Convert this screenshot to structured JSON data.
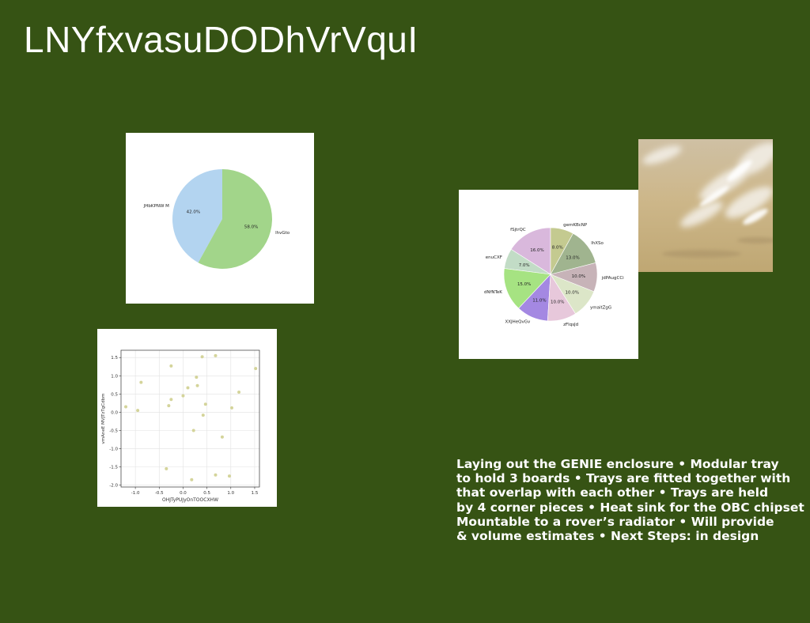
{
  "slide": {
    "title": "LNYfxvasuDODhVrVquI",
    "body_text": "Laying out the GENIE enclosure • Modular tray\nto hold 3 boards • Trays are fitted together with\nthat overlap with each other • Trays are held\nby 4 corner pieces • Heat sink for the OBC chipset\nMountable to a rover’s radiator • Will provide\n& volume estimates • Next Steps: in design",
    "background_color": "#365314",
    "photo": {
      "icon": "cloudy-sky-photo"
    }
  },
  "chart_data": [
    {
      "type": "pie",
      "labels": [
        "JHbKPNW M",
        "lhvGto"
      ],
      "values": [
        42.0,
        58.0
      ],
      "pct_labels": [
        "42.0%",
        "58.0%"
      ],
      "colors": [
        "#b3d4f0",
        "#a2d58a"
      ]
    },
    {
      "type": "pie",
      "labels": [
        "fSjtrQC",
        "enuCXF",
        "dNfNTeK",
        "XXJHeQvGv",
        "zFlqsJd",
        "ymaitZgG",
        "jdPAugCCi",
        "lhXSo",
        "gemKBcNP"
      ],
      "values": [
        16.0,
        7.0,
        15.0,
        11.0,
        10.0,
        10.0,
        10.0,
        13.0,
        8.0
      ],
      "pct_labels": [
        "16.0%",
        "7.0%",
        "15.0%",
        "11.0%",
        "10.0%",
        "10.0%",
        "10.0%",
        "13.0%",
        "8.0%"
      ],
      "colors": [
        "#d9b8dc",
        "#c2dcc6",
        "#a6e382",
        "#a488e2",
        "#e7c8db",
        "#dce6c8",
        "#c7b3b8",
        "#a0b48f",
        "#c4ca90"
      ]
    },
    {
      "type": "scatter",
      "xlabel": "OHJTyPUJyOnTOOCXHW",
      "ylabel": "vmAneE MVJTzTgCdbm",
      "xlim": [
        -1.3,
        1.6
      ],
      "ylim": [
        -2.05,
        1.7
      ],
      "xticks": [
        "-1.0",
        "-0.5",
        "0.0",
        "0.5",
        "1.0",
        "1.5"
      ],
      "yticks": [
        "1.5",
        "1.0",
        "0.5",
        "0.0",
        "-0.5",
        "-1.0",
        "-1.5",
        "-2.0"
      ],
      "grid": true,
      "point_color": "#d4d49a",
      "points": [
        [
          -1.2,
          0.15
        ],
        [
          -0.95,
          0.05
        ],
        [
          -0.88,
          0.82
        ],
        [
          -0.35,
          -1.55
        ],
        [
          -0.3,
          0.18
        ],
        [
          -0.25,
          1.27
        ],
        [
          -0.25,
          0.35
        ],
        [
          0.0,
          0.45
        ],
        [
          0.1,
          0.67
        ],
        [
          0.18,
          -1.85
        ],
        [
          0.22,
          -0.5
        ],
        [
          0.28,
          0.96
        ],
        [
          0.3,
          0.73
        ],
        [
          0.4,
          1.52
        ],
        [
          0.42,
          -0.08
        ],
        [
          0.47,
          0.22
        ],
        [
          0.68,
          1.55
        ],
        [
          0.68,
          -1.72
        ],
        [
          0.82,
          -0.68
        ],
        [
          0.97,
          -1.75
        ],
        [
          1.02,
          0.12
        ],
        [
          1.17,
          0.55
        ],
        [
          1.52,
          1.2
        ]
      ]
    }
  ]
}
